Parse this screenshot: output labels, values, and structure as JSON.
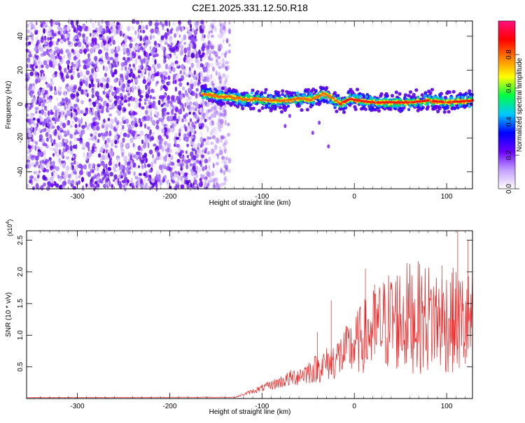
{
  "title": "C2E1.2025.331.12.50.R18",
  "chart_data": [
    {
      "type": "heatmap",
      "xlabel": "Height of straight line (km)",
      "ylabel": "Frequency (Hz)",
      "xlim": [
        -355,
        128
      ],
      "ylim": [
        -50,
        49
      ],
      "xticks": [
        -300,
        -200,
        -100,
        0,
        100
      ],
      "yticks": [
        -40,
        -20,
        0,
        20,
        40
      ],
      "noise_region_x": [
        -355,
        -135
      ],
      "ridge": {
        "x": [
          -165,
          -150,
          -135,
          -120,
          -105,
          -90,
          -75,
          -60,
          -45,
          -35,
          -25,
          -15,
          -5,
          5,
          20,
          40,
          60,
          80,
          100,
          128
        ],
        "y": [
          6,
          5,
          4,
          3,
          3,
          2,
          2,
          3,
          3,
          6,
          4,
          0,
          3,
          2,
          1,
          1,
          1,
          2,
          1,
          2
        ]
      },
      "colorbar": {
        "label": "Normalized spectral amplitude",
        "range": [
          0,
          1
        ],
        "ticks": [
          "0.0",
          "0.2",
          "0.4",
          "0.6",
          "0.8"
        ],
        "colors": [
          "#ffffff",
          "#c4a0ff",
          "#6a00ff",
          "#0000ff",
          "#00c8ff",
          "#00ff44",
          "#ffff00",
          "#ff8000",
          "#ff0000",
          "#ff1080"
        ]
      }
    },
    {
      "type": "line",
      "xlabel": "Height of straight line (km)",
      "ylabel": "SNR (10 * v/v)",
      "y_multiplier": "(x10",
      "y_multiplier_exp": "4",
      "y_multiplier_close": ")",
      "xlim": [
        -355,
        128
      ],
      "ylim": [
        0,
        2.65
      ],
      "xticks": [
        -300,
        -200,
        -100,
        0,
        100
      ],
      "yticks": [
        0.5,
        1.0,
        1.5,
        2.0,
        2.5
      ],
      "ytick_labels": [
        "0.5",
        "1.0",
        "1.5",
        "2.0",
        "2.5"
      ],
      "series_color": "#ee2222",
      "envelope": {
        "x": [
          -355,
          -130,
          -110,
          -90,
          -70,
          -50,
          -30,
          -15,
          0,
          10,
          20,
          40,
          60,
          80,
          100,
          115,
          128
        ],
        "y": [
          0.01,
          0.015,
          0.12,
          0.22,
          0.33,
          0.45,
          0.58,
          0.72,
          0.9,
          1.05,
          1.15,
          1.35,
          1.4,
          1.38,
          1.35,
          1.3,
          1.3
        ]
      },
      "spikes": {
        "x": [
          -40,
          -25,
          12,
          22,
          95,
          112,
          120,
          123
        ],
        "y": [
          1.05,
          1.55,
          2.05,
          1.8,
          2.1,
          2.7,
          0.55,
          2.5
        ]
      }
    }
  ]
}
